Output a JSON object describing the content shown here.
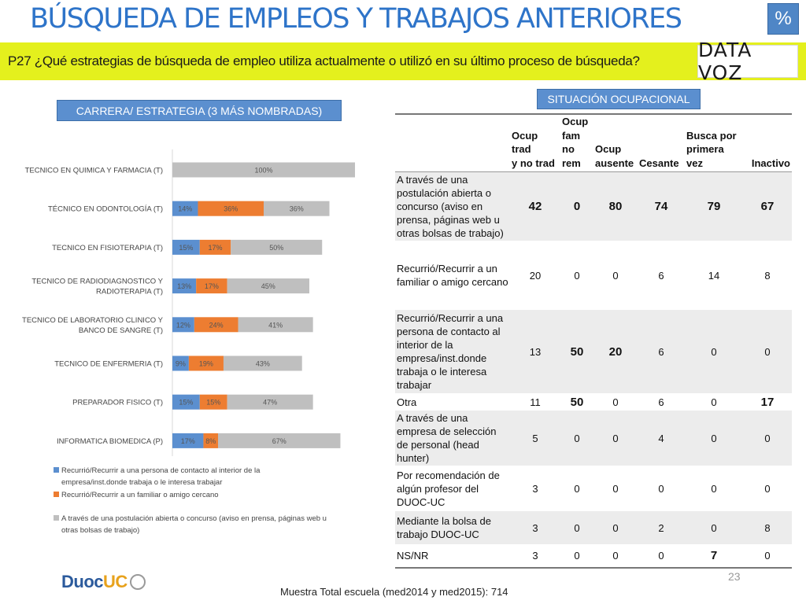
{
  "page": {
    "title": "BÚSQUEDA DE EMPLEOS Y TRABAJOS ANTERIORES",
    "badge": "%",
    "question": "P27 ¿Qué estrategias de búsqueda de empleo utiliza actualmente o utilizó en su último proceso de búsqueda?",
    "logo": "DATA VOZ",
    "page_number": "23",
    "footer": "Muestra Total escuela (med2014 y med2015):  714",
    "duoc_logo": {
      "part1": "Duoc",
      "part2": "UC"
    }
  },
  "left_header": "CARRERA/ ESTRATEGIA (3 MÁS NOMBRADAS)",
  "right_header": "SITUACIÓN OCUPACIONAL",
  "colors": {
    "contact": "#5b8fcf",
    "familiar": "#ed7d31",
    "postulacion": "#bfbfbf",
    "yellow": "#e4f01d",
    "title_blue": "#2e74c9"
  },
  "chart_data": {
    "type": "bar",
    "orientation": "horizontal",
    "stacked": true,
    "categories": [
      "TECNICO EN QUIMICA Y FARMACIA (T)",
      "TÉCNICO EN ODONTOLOGÍA (T)",
      "TECNICO EN FISIOTERAPIA (T)",
      "TECNICO DE RADIODIAGNOSTICO Y RADIOTERAPIA (T)",
      "TECNICO DE LABORATORIO CLINICO Y BANCO DE SANGRE (T)",
      "TECNICO DE ENFERMERIA (T)",
      "PREPARADOR FISICO (T)",
      "INFORMATICA BIOMEDICA (P)"
    ],
    "category_lines": [
      [
        "TECNICO EN QUIMICA Y FARMACIA (T)"
      ],
      [
        "TÉCNICO EN ODONTOLOGÍA (T)"
      ],
      [
        "TECNICO EN FISIOTERAPIA (T)"
      ],
      [
        "TECNICO DE RADIODIAGNOSTICO Y",
        "RADIOTERAPIA (T)"
      ],
      [
        "TECNICO DE LABORATORIO CLINICO Y",
        "BANCO DE SANGRE (T)"
      ],
      [
        "TECNICO DE ENFERMERIA (T)"
      ],
      [
        "PREPARADOR FISICO (T)"
      ],
      [
        "INFORMATICA BIOMEDICA (P)"
      ]
    ],
    "series": [
      {
        "name": "Recurrió/Recurrir a  una persona de contacto al interior de la empresa/inst.donde trabaja o le interesa trabajar",
        "values": [
          0,
          14,
          15,
          13,
          12,
          9,
          15,
          17
        ],
        "labels": [
          "",
          "14%",
          "15%",
          "13%",
          "12%",
          "9%",
          "15%",
          "17%"
        ]
      },
      {
        "name": "Recurrió/Recurrir a un  familiar o amigo cercano",
        "values": [
          0,
          36,
          17,
          17,
          24,
          19,
          15,
          8
        ],
        "labels": [
          "",
          "36%",
          "17%",
          "17%",
          "24%",
          "19%",
          "15%",
          "8%"
        ]
      },
      {
        "name": "A través de una postulación abierta o concurso (aviso en prensa, páginas web u otras bolsas de trabajo)",
        "values": [
          100,
          36,
          50,
          45,
          41,
          43,
          47,
          67
        ],
        "labels": [
          "100%",
          "36%",
          "50%",
          "45%",
          "41%",
          "43%",
          "47%",
          "67%"
        ]
      }
    ],
    "legend_lines": [
      [
        "Recurrió/Recurrir a  una persona de contacto al interior de la",
        "empresa/inst.donde trabaja o le interesa trabajar"
      ],
      [
        "Recurrió/Recurrir a un  familiar o amigo cercano"
      ],
      [
        "A través de una postulación abierta o concurso (aviso en prensa, páginas web u",
        "otras bolsas de trabajo)"
      ]
    ],
    "xlim": [
      0,
      100
    ],
    "legend": "bottom"
  },
  "table": {
    "columns": [
      [
        "Ocup trad",
        "y no trad"
      ],
      [
        "Ocup",
        "fam",
        "no",
        "rem"
      ],
      [
        "Ocup",
        "ausente"
      ],
      [
        "Cesante"
      ],
      [
        "Busca por",
        "primera",
        "vez"
      ],
      [
        "Inactivo"
      ]
    ],
    "rows": [
      {
        "label": "A través de una postulación abierta o concurso (aviso en prensa, páginas web u otras bolsas de trabajo)",
        "values": [
          "42",
          "0",
          "80",
          "74",
          "79",
          "67"
        ],
        "bold": [
          true,
          true,
          true,
          true,
          true,
          true
        ],
        "shade": true
      },
      {
        "label": "Recurrió/Recurrir a un familiar o amigo cercano",
        "values": [
          "20",
          "0",
          "0",
          "6",
          "14",
          "8"
        ],
        "bold": [
          false,
          false,
          false,
          false,
          false,
          false
        ],
        "shade": false
      },
      {
        "label": "Recurrió/Recurrir a  una persona de contacto al interior de la empresa/inst.donde trabaja o le interesa trabajar",
        "values": [
          "13",
          "50",
          "20",
          "6",
          "0",
          "0"
        ],
        "bold": [
          false,
          true,
          true,
          false,
          false,
          false
        ],
        "shade": true
      },
      {
        "label": "Otra",
        "values": [
          "11",
          "50",
          "0",
          "6",
          "0",
          "17"
        ],
        "bold": [
          false,
          true,
          false,
          false,
          false,
          true
        ],
        "shade": false
      },
      {
        "label": "A través de una empresa de selección de personal (head hunter)",
        "values": [
          "5",
          "0",
          "0",
          "4",
          "0",
          "0"
        ],
        "bold": [
          false,
          false,
          false,
          false,
          false,
          false
        ],
        "shade": true
      },
      {
        "label": "Por recomendación de algún profesor del DUOC-UC",
        "values": [
          "3",
          "0",
          "0",
          "0",
          "0",
          "0"
        ],
        "bold": [
          false,
          false,
          false,
          false,
          false,
          false
        ],
        "shade": false
      },
      {
        "label": "Mediante la bolsa de trabajo DUOC-UC",
        "values": [
          "3",
          "0",
          "0",
          "2",
          "0",
          "8"
        ],
        "bold": [
          false,
          false,
          false,
          false,
          false,
          false
        ],
        "shade": true
      },
      {
        "label": "NS/NR",
        "values": [
          "3",
          "0",
          "0",
          "0",
          "7",
          "0"
        ],
        "bold": [
          false,
          false,
          false,
          false,
          true,
          false
        ],
        "shade": false
      }
    ]
  }
}
